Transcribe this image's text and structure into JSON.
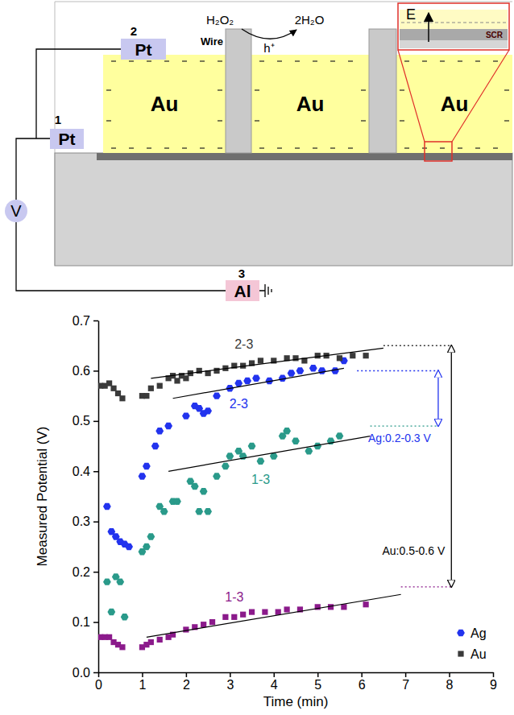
{
  "diagram": {
    "electrodes": [
      {
        "number": "1",
        "label": "Pt"
      },
      {
        "number": "2",
        "label": "Pt"
      },
      {
        "number": "3",
        "label": "Al"
      }
    ],
    "meter": "V",
    "wire": "Wire",
    "layers": [
      "Au",
      "Au",
      "Au"
    ],
    "reaction": {
      "reactant": "H₂O₂",
      "product": "2H₂O",
      "carrier": "h⁺"
    },
    "inset": {
      "field": "E",
      "region": "SCR"
    }
  },
  "chart_data": {
    "type": "scatter",
    "xlabel": "Time (min)",
    "ylabel": "Measured Potential (V)",
    "xlim": [
      0,
      9
    ],
    "xticks": [
      0,
      1,
      2,
      3,
      4,
      5,
      6,
      7,
      8,
      9
    ],
    "ylim": [
      0,
      0.7
    ],
    "yticks": [
      {
        "value": 0,
        "label": "0.0"
      },
      0.1,
      0.2,
      0.3,
      0.4,
      0.5,
      0.6,
      0.7
    ],
    "grid": false,
    "legend": "lower right",
    "series": [
      {
        "name": "Ag",
        "label": "2-3",
        "color": "#2233ee",
        "marker": "hexagon",
        "x": [
          0.2,
          0.3,
          0.4,
          0.5,
          0.6,
          0.7,
          1.0,
          1.1,
          1.3,
          1.4,
          1.6,
          2.0,
          2.2,
          2.3,
          2.4,
          2.5,
          2.7,
          3.0,
          3.2,
          3.4,
          3.6,
          3.9,
          4.2,
          4.4,
          4.6,
          4.9,
          5.1,
          5.4,
          5.6
        ],
        "values": [
          0.33,
          0.28,
          0.27,
          0.26,
          0.255,
          0.25,
          0.39,
          0.41,
          0.45,
          0.48,
          0.49,
          0.51,
          0.53,
          0.525,
          0.515,
          0.52,
          0.55,
          0.565,
          0.575,
          0.58,
          0.585,
          0.58,
          0.585,
          0.595,
          0.6,
          0.605,
          0.6,
          0.6,
          0.62
        ],
        "trend": {
          "x": [
            1.7,
            5.6
          ],
          "values": [
            0.545,
            0.605
          ]
        },
        "level": {
          "x": [
            5.9,
            7.75
          ],
          "values": [
            0.6,
            0.6
          ]
        }
      },
      {
        "label": "1-3",
        "color": "#2a9a8a",
        "marker": "hexagon",
        "x": [
          0.2,
          0.3,
          0.4,
          0.5,
          0.6,
          1.0,
          1.1,
          1.2,
          1.4,
          1.5,
          1.7,
          1.8,
          2.1,
          2.2,
          2.3,
          2.4,
          2.5,
          2.7,
          2.9,
          3.0,
          3.2,
          3.3,
          3.5,
          3.7,
          4.0,
          4.2,
          4.3,
          4.5,
          4.8,
          5.0,
          5.3,
          5.5
        ],
        "values": [
          0.18,
          0.12,
          0.19,
          0.18,
          0.11,
          0.24,
          0.25,
          0.27,
          0.33,
          0.32,
          0.34,
          0.34,
          0.38,
          0.37,
          0.32,
          0.36,
          0.32,
          0.39,
          0.41,
          0.43,
          0.44,
          0.43,
          0.45,
          0.42,
          0.43,
          0.47,
          0.48,
          0.46,
          0.44,
          0.45,
          0.46,
          0.47
        ],
        "trend": {
          "x": [
            1.6,
            6.2
          ],
          "values": [
            0.4,
            0.47
          ]
        },
        "level": {
          "x": [
            6.2,
            7.75
          ],
          "values": [
            0.49,
            0.49
          ]
        }
      },
      {
        "name": "Au",
        "label": "2-3",
        "color": "#3a3a3a",
        "marker": "square",
        "x": [
          0.05,
          0.15,
          0.25,
          0.35,
          0.45,
          0.55,
          1.0,
          1.1,
          1.2,
          1.4,
          1.6,
          1.7,
          1.8,
          1.9,
          2.0,
          2.1,
          2.3,
          2.5,
          2.7,
          2.9,
          3.1,
          3.3,
          3.5,
          3.7,
          4.0,
          4.3,
          4.5,
          4.7,
          5.0,
          5.2,
          5.5,
          5.8,
          6.1
        ],
        "values": [
          0.57,
          0.57,
          0.575,
          0.565,
          0.555,
          0.545,
          0.55,
          0.55,
          0.565,
          0.57,
          0.585,
          0.59,
          0.58,
          0.59,
          0.585,
          0.595,
          0.6,
          0.595,
          0.6,
          0.605,
          0.61,
          0.61,
          0.615,
          0.62,
          0.62,
          0.625,
          0.625,
          0.62,
          0.63,
          0.63,
          0.625,
          0.63,
          0.63
        ],
        "trend": {
          "x": [
            1.2,
            6.5
          ],
          "values": [
            0.585,
            0.645
          ]
        },
        "level": {
          "x": [
            6.5,
            8.05
          ],
          "values": [
            0.65,
            0.65
          ]
        }
      },
      {
        "label": "1-3",
        "color": "#8b1a8b",
        "marker": "square",
        "x": [
          0.05,
          0.15,
          0.25,
          0.35,
          0.45,
          0.55,
          1.0,
          1.1,
          1.2,
          1.4,
          1.6,
          1.7,
          2.0,
          2.2,
          2.4,
          2.6,
          2.9,
          3.1,
          3.3,
          3.5,
          3.8,
          4.1,
          4.3,
          4.6,
          5.0,
          5.3,
          5.6,
          6.1
        ],
        "values": [
          0.07,
          0.07,
          0.07,
          0.06,
          0.055,
          0.05,
          0.05,
          0.055,
          0.06,
          0.065,
          0.07,
          0.075,
          0.085,
          0.09,
          0.095,
          0.1,
          0.11,
          0.11,
          0.115,
          0.12,
          0.12,
          0.12,
          0.125,
          0.125,
          0.13,
          0.13,
          0.13,
          0.135
        ],
        "trend": {
          "x": [
            1.1,
            6.9
          ],
          "values": [
            0.07,
            0.155
          ]
        },
        "level": {
          "x": [
            6.9,
            8.05
          ],
          "values": [
            0.17,
            0.17
          ]
        }
      }
    ],
    "annotations": [
      {
        "text": "Ag:0.2-0.3 V",
        "color": "#2233ee",
        "x": 7.75,
        "from": 0.49,
        "to": 0.6
      },
      {
        "text": "Au:0.5-0.6 V",
        "color": "#000000",
        "x": 8.05,
        "from": 0.17,
        "to": 0.65
      }
    ]
  }
}
